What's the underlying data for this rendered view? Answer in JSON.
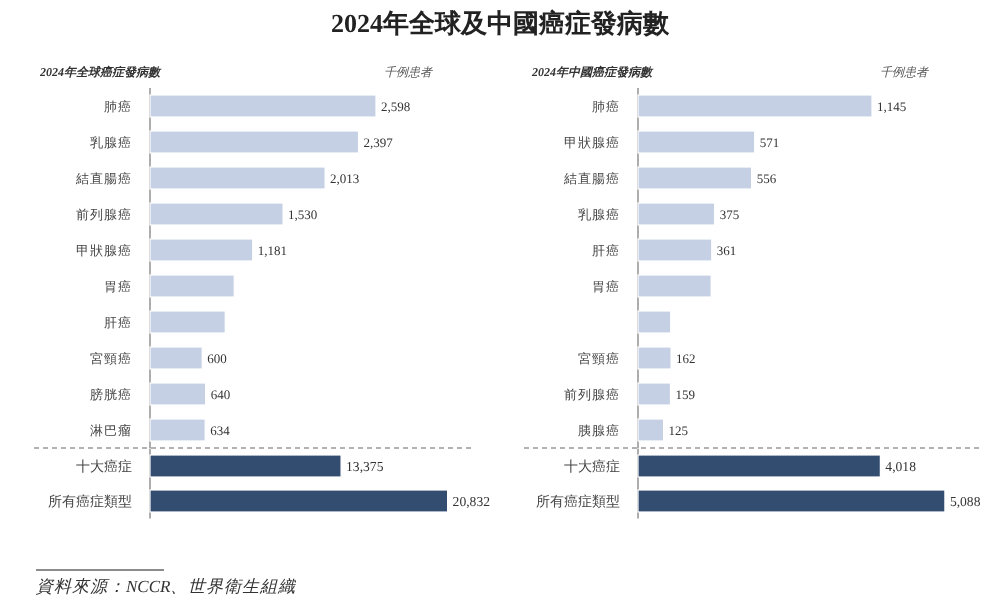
{
  "chart_data": [
    {
      "type": "bar",
      "orientation": "horizontal",
      "title": "2024年全球及中國癌症發病數",
      "subtitle": "2024年全球癌症發病數",
      "annotations": [
        "千例患者"
      ],
      "categories": [
        "肺癌",
        "乳腺癌",
        "結直腸癌",
        "前列腺癌",
        "甲狀腺癌",
        "胃癌",
        "肝癌",
        "宮頸癌",
        "膀胱癌",
        "淋巴瘤"
      ],
      "values": [
        2598,
        2397,
        2013,
        1530,
        1181,
        968,
        865,
        600,
        640,
        634
      ],
      "value_labels": [
        "2,598",
        "2,397",
        "2,013",
        "1,530",
        "1,181",
        null,
        null,
        "600",
        "640",
        "634"
      ],
      "color": "#c5d0e4"
    },
    {
      "type": "bar",
      "orientation": "horizontal",
      "categories": [
        "十大癌症",
        "所有癌症類型"
      ],
      "values": [
        13375,
        20832
      ],
      "value_labels": [
        "13,375",
        "20,832"
      ],
      "color": "#334d70",
      "annotations": [
        "資料來源：NCCR、世界衛生組織"
      ]
    },
    {
      "type": "bar",
      "orientation": "horizontal",
      "subtitle": "2024年中國癌症發病數",
      "annotations": [
        "千例患者"
      ],
      "categories": [
        "肺癌",
        "甲狀腺癌",
        "結直腸癌",
        "乳腺癌",
        "肝癌",
        "胃癌",
        null,
        "宮頸癌",
        "前列腺癌",
        "胰腺癌"
      ],
      "values": [
        1145,
        571,
        556,
        375,
        361,
        358,
        160,
        162,
        159,
        125
      ],
      "value_labels": [
        "1,145",
        "571",
        "556",
        "375",
        "361",
        null,
        null,
        "162",
        "159",
        "125"
      ],
      "color": "#c5d0e4"
    },
    {
      "type": "bar",
      "orientation": "horizontal",
      "categories": [
        "十大癌症",
        "所有癌症類型"
      ],
      "values": [
        4018,
        5088
      ],
      "value_labels": [
        "4,018",
        "5,088"
      ],
      "color": "#334d70"
    }
  ]
}
